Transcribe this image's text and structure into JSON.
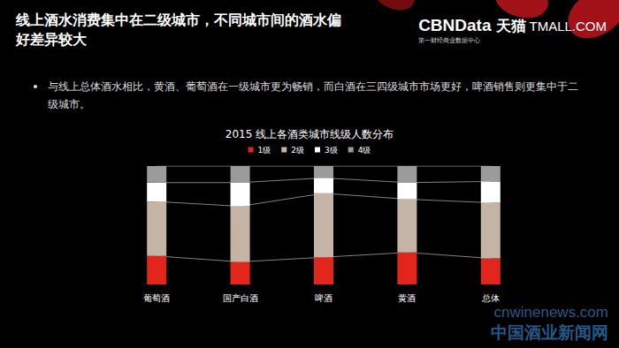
{
  "header": {
    "title": "线上酒水消费集中在二级城市，不同城市间的酒水偏好差异较大",
    "brand": {
      "name": "CBNData",
      "subtitle": "第一财经商业数据中心",
      "partner": "天猫",
      "partner_site": "TMALL.COM"
    }
  },
  "bullet": "与线上总体酒水相比，黄酒、葡萄酒在一级城市更为畅销，而白酒在三四级城市市场更好，啤酒销售则更集中于二级城市。",
  "watermark": {
    "site": "cnwinenews.com",
    "name": "中国酒业新闻网"
  },
  "chart_data": {
    "type": "bar",
    "title": "2015 线上各酒类城市线级人数分布",
    "categories": [
      "葡萄酒",
      "国产白酒",
      "啤酒",
      "黄酒",
      "总体"
    ],
    "series": [
      {
        "name": "1级",
        "color": "#e3261b",
        "values": [
          24,
          19,
          23,
          27,
          22
        ]
      },
      {
        "name": "2级",
        "color": "#c4b4a6",
        "values": [
          46,
          47,
          54,
          45,
          47
        ]
      },
      {
        "name": "3级",
        "color": "#ffffff",
        "values": [
          16,
          20,
          13,
          14,
          18
        ]
      },
      {
        "name": "4级",
        "color": "#9b9b9b",
        "values": [
          14,
          14,
          10,
          14,
          13
        ]
      }
    ],
    "stacked": true,
    "ylim": [
      0,
      100
    ],
    "legend": "top",
    "tick_labels": "x",
    "grid": false
  }
}
